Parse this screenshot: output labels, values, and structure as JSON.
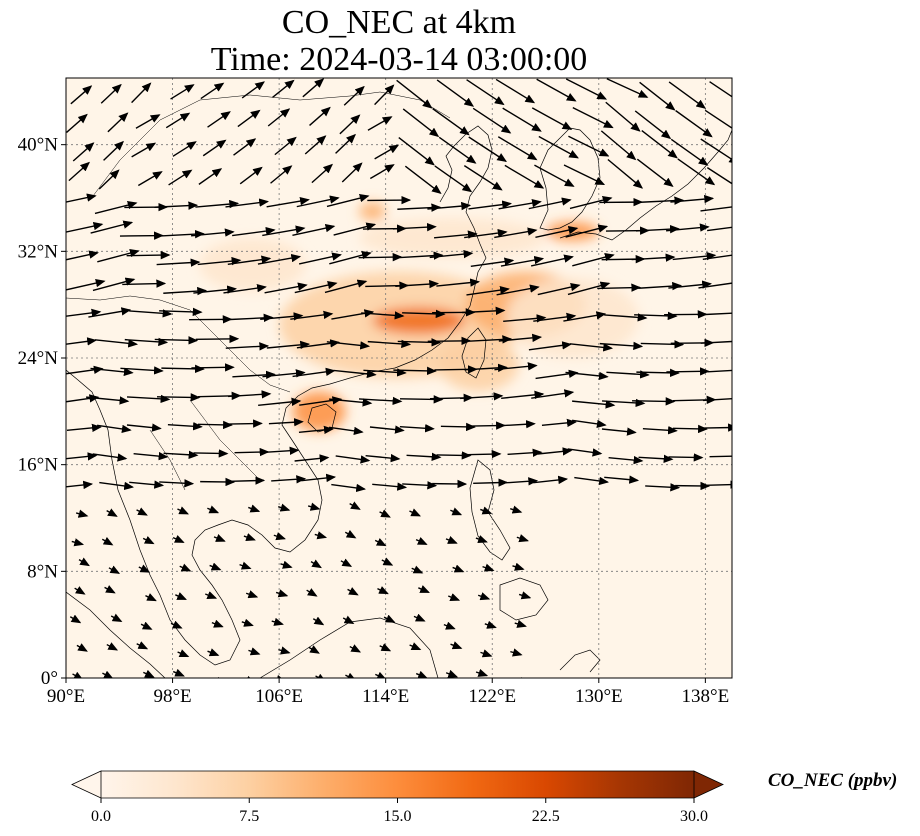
{
  "title": {
    "line1": "CO_NEC at 4km",
    "line2": "Time: 2024-03-14 03:00:00"
  },
  "map": {
    "lon_range": [
      90,
      140
    ],
    "lat_range": [
      0,
      45
    ],
    "lon_ticks": [
      {
        "value": 90,
        "label": "90°E"
      },
      {
        "value": 98,
        "label": "98°E"
      },
      {
        "value": 106,
        "label": "106°E"
      },
      {
        "value": 114,
        "label": "114°E"
      },
      {
        "value": 122,
        "label": "122°E"
      },
      {
        "value": 130,
        "label": "130°E"
      },
      {
        "value": 138,
        "label": "138°E"
      }
    ],
    "lat_ticks": [
      {
        "value": 0,
        "label": "0°"
      },
      {
        "value": 8,
        "label": "8°N"
      },
      {
        "value": 16,
        "label": "16°N"
      },
      {
        "value": 24,
        "label": "24°N"
      },
      {
        "value": 32,
        "label": "32°N"
      },
      {
        "value": 40,
        "label": "40°N"
      }
    ],
    "gridlines": true,
    "background_color": "#fff5e8",
    "co_plumes": [
      {
        "lon": 115.0,
        "lat": 26.5,
        "rlon": 9.0,
        "rlat": 4.0,
        "level": 9
      },
      {
        "lon": 116.5,
        "lat": 26.8,
        "rlon": 3.5,
        "rlat": 1.0,
        "level": 20
      },
      {
        "lon": 124.5,
        "lat": 28.0,
        "rlon": 4.5,
        "rlat": 2.5,
        "level": 11
      },
      {
        "lon": 109.0,
        "lat": 20.0,
        "rlon": 2.0,
        "rlat": 1.5,
        "level": 15
      },
      {
        "lon": 128.0,
        "lat": 33.5,
        "rlon": 2.0,
        "rlat": 0.7,
        "level": 15
      },
      {
        "lon": 113.0,
        "lat": 35.0,
        "rlon": 1.0,
        "rlat": 0.7,
        "level": 13
      },
      {
        "lon": 119.0,
        "lat": 33.0,
        "rlon": 7.0,
        "rlat": 1.5,
        "level": 5
      },
      {
        "lon": 121.0,
        "lat": 23.5,
        "rlon": 3.0,
        "rlat": 2.0,
        "level": 8
      },
      {
        "lon": 104.0,
        "lat": 31.0,
        "rlon": 4.0,
        "rlat": 2.0,
        "level": 4
      },
      {
        "lon": 128.0,
        "lat": 27.0,
        "rlon": 5.0,
        "rlat": 3.0,
        "level": 5
      }
    ],
    "wind_flow": [
      {
        "lat_min": 36,
        "lat_max": 45,
        "lon_min": 90,
        "lon_max": 114,
        "u": 0.5,
        "v": 0.4
      },
      {
        "lat_min": 36,
        "lat_max": 45,
        "lon_min": 114,
        "lon_max": 140,
        "u": 0.9,
        "v": -0.55
      },
      {
        "lat_min": 28,
        "lat_max": 36,
        "lon_min": 90,
        "lon_max": 140,
        "u": 1.0,
        "v": 0.15
      },
      {
        "lat_min": 20,
        "lat_max": 28,
        "lon_min": 90,
        "lon_max": 140,
        "u": 1.0,
        "v": 0.05
      },
      {
        "lat_min": 14,
        "lat_max": 20,
        "lon_min": 90,
        "lon_max": 140,
        "u": 0.8,
        "v": 0.0
      },
      {
        "lat_min": 0,
        "lat_max": 14,
        "lon_min": 90,
        "lon_max": 125,
        "u": 0.25,
        "v": -0.1
      }
    ]
  },
  "colorbar": {
    "label": "CO_NEC (ppbv)",
    "min": 0,
    "max": 30,
    "extend": "both",
    "ticks": [
      {
        "value": 0,
        "label": "0.0"
      },
      {
        "value": 7.5,
        "label": "7.5"
      },
      {
        "value": 15,
        "label": "15.0"
      },
      {
        "value": 22.5,
        "label": "22.5"
      },
      {
        "value": 30,
        "label": "30.0"
      }
    ],
    "colormap": [
      "#fff5eb",
      "#fee6ce",
      "#fdd0a2",
      "#fdae6b",
      "#fd8d3c",
      "#f16913",
      "#d94801",
      "#a63603",
      "#7f2704"
    ]
  }
}
